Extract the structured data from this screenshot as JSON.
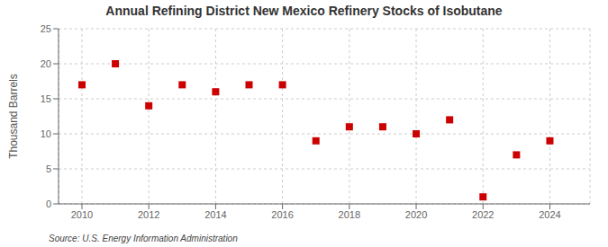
{
  "chart_data": {
    "type": "scatter",
    "title": "Annual Refining District New Mexico Refinery Stocks of Isobutane",
    "ylabel": "Thousand Barrels",
    "annotation": "Source: U.S. Energy Information Administration",
    "x": [
      2010,
      2011,
      2012,
      2013,
      2014,
      2015,
      2016,
      2017,
      2018,
      2019,
      2020,
      2021,
      2022,
      2023,
      2024
    ],
    "values": [
      17,
      20,
      14,
      17,
      16,
      17,
      17,
      9,
      11,
      11,
      10,
      12,
      1,
      7,
      9
    ],
    "color": "#cc0000",
    "marker": "square",
    "xlim": [
      2009.3,
      2025.2
    ],
    "ylim": [
      0,
      25
    ],
    "xticks": [
      2010,
      2012,
      2014,
      2016,
      2018,
      2020,
      2022,
      2024
    ],
    "yticks": [
      0,
      5,
      10,
      15,
      20,
      25
    ],
    "grid": true
  }
}
